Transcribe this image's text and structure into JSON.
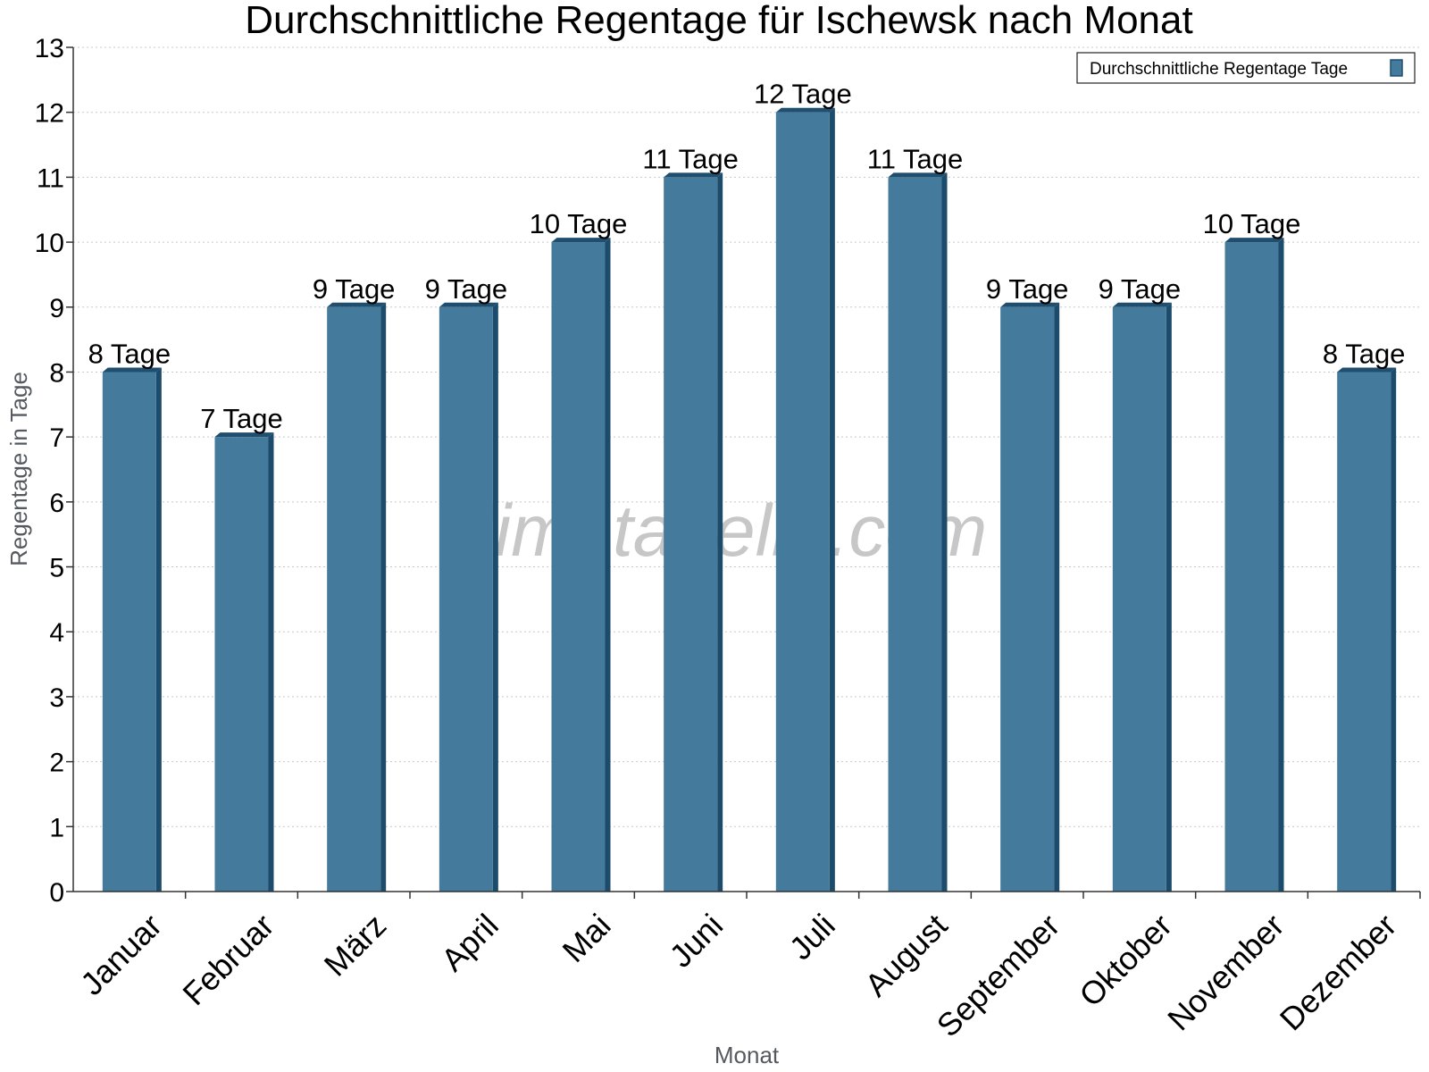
{
  "watermark": "klimatabelle.com",
  "chart_data": {
    "type": "bar",
    "title": "Durchschnittliche Regentage für Ischewsk nach Monat",
    "xlabel": "Monat",
    "ylabel": "Regentage in Tage",
    "ylim": [
      0,
      13
    ],
    "yticks": [
      0,
      1,
      2,
      3,
      4,
      5,
      6,
      7,
      8,
      9,
      10,
      11,
      12,
      13
    ],
    "grid": true,
    "legend_position": "top-right",
    "categories": [
      "Januar",
      "Februar",
      "März",
      "April",
      "Mai",
      "Juni",
      "Juli",
      "August",
      "September",
      "Oktober",
      "November",
      "Dezember"
    ],
    "series": [
      {
        "name": "Durchschnittliche Regentage Tage",
        "color": "#447a9c",
        "values": [
          8,
          7,
          9,
          9,
          10,
          11,
          12,
          11,
          9,
          9,
          10,
          8
        ],
        "labels": [
          "8 Tage",
          "7 Tage",
          "9 Tage",
          "9 Tage",
          "10 Tage",
          "11 Tage",
          "12 Tage",
          "11 Tage",
          "9 Tage",
          "9 Tage",
          "10 Tage",
          "8 Tage"
        ]
      }
    ]
  }
}
